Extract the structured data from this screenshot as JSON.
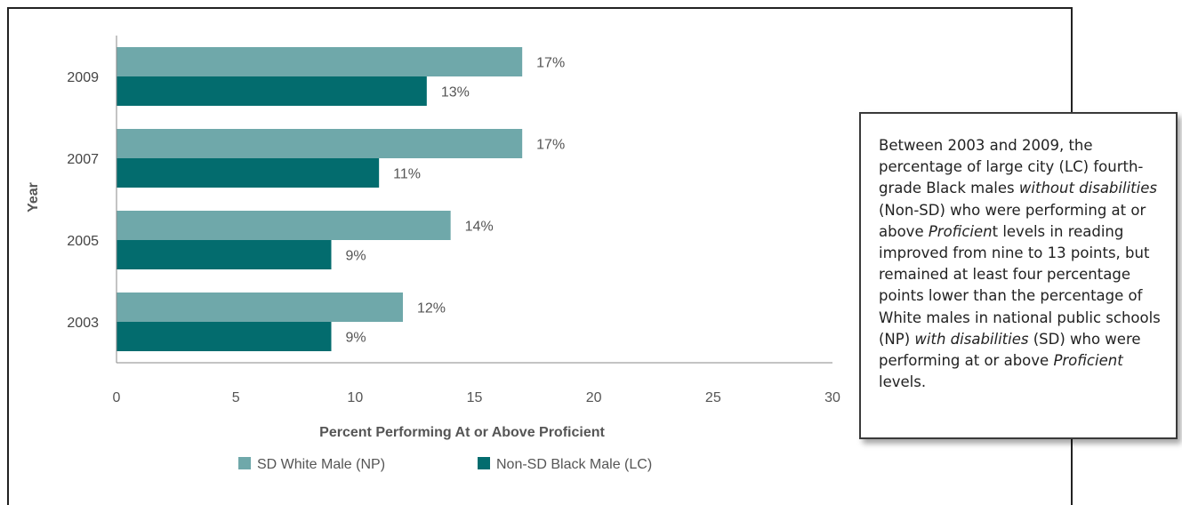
{
  "chart_data": {
    "type": "bar",
    "orientation": "horizontal",
    "categories": [
      "2009",
      "2007",
      "2005",
      "2003"
    ],
    "series": [
      {
        "name": "SD White Male (NP)",
        "color": "#6fa8aa",
        "values": [
          17,
          17,
          14,
          12
        ],
        "labels": [
          "17%",
          "17%",
          "14%",
          "12%"
        ]
      },
      {
        "name": "Non-SD Black Male (LC)",
        "color": "#036c6e",
        "values": [
          13,
          11,
          9,
          9
        ],
        "labels": [
          "13%",
          "11%",
          "9%",
          "9%"
        ]
      }
    ],
    "xlabel": "Percent Performing At or Above Proficient",
    "ylabel": "Year",
    "xlim": [
      0,
      30
    ],
    "xticks": [
      "0",
      "5",
      "10",
      "15",
      "20",
      "25",
      "30"
    ],
    "grid": false,
    "legend_position": "bottom"
  },
  "callout": {
    "segments": [
      {
        "text": "Between 2003 and 2009, the percentage of large city (LC) fourth-grade Black males ",
        "italic": false
      },
      {
        "text": "without disabilities",
        "italic": true
      },
      {
        "text": " (Non-SD) who were performing at or above ",
        "italic": false
      },
      {
        "text": "Proficien",
        "italic": true
      },
      {
        "text": "t levels in reading improved from nine to 13 points, but remained at least four percentage points lower than the percentage of White males in national public schools (NP) ",
        "italic": false
      },
      {
        "text": "with disabilities",
        "italic": true
      },
      {
        "text": " (SD) who were performing at or above ",
        "italic": false
      },
      {
        "text": "Proficient",
        "italic": true
      },
      {
        "text": " levels.",
        "italic": false
      }
    ]
  }
}
